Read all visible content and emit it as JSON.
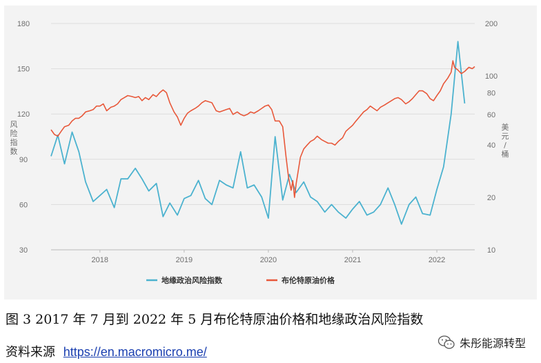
{
  "chart_data": {
    "type": "line",
    "xlabel": "",
    "left_axis": {
      "label": "风险指数",
      "ticks": [
        30,
        60,
        90,
        120,
        150,
        180
      ],
      "range": [
        30,
        180
      ]
    },
    "right_axis": {
      "label": "美元/桶",
      "scale": "log",
      "ticks": [
        10,
        20,
        40,
        60,
        80,
        100,
        200
      ],
      "range": [
        10,
        200
      ]
    },
    "x_axis": {
      "range": [
        2017.42,
        2022.45
      ],
      "ticks": [
        2018,
        2019,
        2020,
        2021,
        2022
      ]
    },
    "legend_position": "bottom",
    "grid": "horizontal",
    "series": [
      {
        "name": "地缘政治风险指数",
        "axis": "left",
        "color": "#4bb2cf",
        "x": [
          2017.42,
          2017.5,
          2017.58,
          2017.67,
          2017.75,
          2017.83,
          2017.92,
          2018.0,
          2018.08,
          2018.17,
          2018.25,
          2018.33,
          2018.42,
          2018.5,
          2018.58,
          2018.67,
          2018.75,
          2018.83,
          2018.92,
          2019.0,
          2019.08,
          2019.17,
          2019.25,
          2019.33,
          2019.42,
          2019.5,
          2019.58,
          2019.67,
          2019.75,
          2019.83,
          2019.92,
          2020.0,
          2020.08,
          2020.17,
          2020.25,
          2020.33,
          2020.42,
          2020.5,
          2020.58,
          2020.67,
          2020.75,
          2020.83,
          2020.92,
          2021.0,
          2021.08,
          2021.17,
          2021.25,
          2021.33,
          2021.42,
          2021.5,
          2021.58,
          2021.67,
          2021.75,
          2021.83,
          2021.92,
          2022.0,
          2022.08,
          2022.17,
          2022.25,
          2022.33
        ],
        "values": [
          92,
          106,
          87,
          108,
          95,
          75,
          62,
          66,
          70,
          58,
          77,
          77,
          84,
          77,
          69,
          74,
          52,
          61,
          53,
          64,
          66,
          76,
          64,
          60,
          76,
          73,
          71,
          95,
          71,
          73,
          65,
          51,
          105,
          63,
          80,
          68,
          75,
          65,
          62,
          55,
          60,
          55,
          51,
          57,
          62,
          53,
          55,
          60,
          71,
          60,
          47,
          60,
          65,
          54,
          53,
          70,
          85,
          120,
          168,
          127
        ]
      },
      {
        "name": "布伦特原油价格",
        "axis": "right",
        "color": "#e8583a",
        "x": [
          2017.42,
          2017.46,
          2017.5,
          2017.54,
          2017.58,
          2017.63,
          2017.67,
          2017.71,
          2017.75,
          2017.79,
          2017.83,
          2017.88,
          2017.92,
          2017.96,
          2018.0,
          2018.04,
          2018.08,
          2018.13,
          2018.17,
          2018.21,
          2018.25,
          2018.29,
          2018.33,
          2018.38,
          2018.42,
          2018.46,
          2018.5,
          2018.54,
          2018.58,
          2018.63,
          2018.67,
          2018.71,
          2018.75,
          2018.79,
          2018.83,
          2018.88,
          2018.92,
          2018.96,
          2019.0,
          2019.04,
          2019.08,
          2019.13,
          2019.17,
          2019.21,
          2019.25,
          2019.29,
          2019.33,
          2019.38,
          2019.42,
          2019.46,
          2019.5,
          2019.54,
          2019.58,
          2019.63,
          2019.67,
          2019.71,
          2019.75,
          2019.79,
          2019.83,
          2019.88,
          2019.92,
          2019.96,
          2020.0,
          2020.04,
          2020.08,
          2020.13,
          2020.17,
          2020.21,
          2020.24,
          2020.27,
          2020.29,
          2020.31,
          2020.33,
          2020.38,
          2020.42,
          2020.46,
          2020.5,
          2020.54,
          2020.58,
          2020.63,
          2020.67,
          2020.71,
          2020.75,
          2020.79,
          2020.83,
          2020.88,
          2020.92,
          2020.96,
          2021.0,
          2021.04,
          2021.08,
          2021.13,
          2021.17,
          2021.21,
          2021.25,
          2021.29,
          2021.33,
          2021.38,
          2021.42,
          2021.46,
          2021.5,
          2021.54,
          2021.58,
          2021.63,
          2021.67,
          2021.71,
          2021.75,
          2021.79,
          2021.83,
          2021.88,
          2021.92,
          2021.96,
          2022.0,
          2022.04,
          2022.08,
          2022.13,
          2022.17,
          2022.19,
          2022.21,
          2022.25,
          2022.29,
          2022.33,
          2022.38,
          2022.42,
          2022.45
        ],
        "values": [
          49,
          46,
          45,
          48,
          51,
          52,
          55,
          57,
          57,
          59,
          62,
          63,
          64,
          67,
          67,
          69,
          63,
          66,
          67,
          69,
          73,
          75,
          77,
          76,
          75,
          76,
          72,
          75,
          73,
          78,
          76,
          80,
          83,
          80,
          70,
          62,
          58,
          52,
          57,
          61,
          63,
          65,
          67,
          70,
          72,
          71,
          70,
          63,
          62,
          63,
          64,
          65,
          60,
          62,
          60,
          59,
          60,
          62,
          61,
          63,
          65,
          67,
          68,
          64,
          55,
          55,
          51,
          34,
          26,
          22,
          25,
          20,
          24,
          34,
          38,
          40,
          42,
          43,
          45,
          43,
          42,
          41,
          41,
          40,
          42,
          44,
          48,
          50,
          52,
          55,
          58,
          62,
          64,
          67,
          65,
          63,
          66,
          68,
          70,
          72,
          74,
          75,
          73,
          69,
          71,
          74,
          78,
          82,
          82,
          79,
          74,
          72,
          77,
          82,
          90,
          97,
          105,
          122,
          112,
          108,
          103,
          106,
          112,
          110,
          113
        ]
      }
    ]
  },
  "legend": [
    {
      "label": "地缘政治风险指数",
      "color": "#4bb2cf"
    },
    {
      "label": "布伦特原油价格",
      "color": "#e8583a"
    }
  ],
  "caption": "图 3    2017 年 7 月到 2022 年 5 月布伦特原油价格和地缘政治风险指数",
  "source": {
    "label": "资料来源",
    "url": "https://en.macromicro.me/"
  },
  "watermark": {
    "text": "朱彤能源转型",
    "icon": "wechat-icon"
  }
}
